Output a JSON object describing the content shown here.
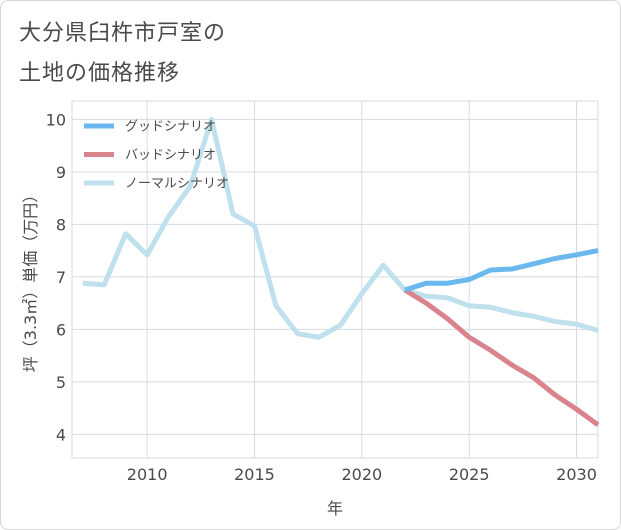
{
  "title_lines": [
    "大分県臼杵市戸室の",
    "土地の価格推移"
  ],
  "colors": {
    "good": "#6bb8ef",
    "bad": "#d9848d",
    "normal": "#bfe0ed",
    "grid": "#d5dbe3",
    "axis": "#4a4a4a"
  },
  "chart_data": {
    "type": "line",
    "title": "大分県臼杵市戸室の土地の価格推移",
    "xlabel": "年",
    "ylabel": "坪（3.3㎡）単価（万円）",
    "xlim": [
      2006.5,
      2031
    ],
    "ylim": [
      3.55,
      10.35
    ],
    "xticks": [
      2010,
      2015,
      2020,
      2025,
      2030
    ],
    "yticks": [
      4,
      5,
      6,
      7,
      8,
      9,
      10
    ],
    "legend_position": "top-left",
    "series": [
      {
        "name": "グッドシナリオ",
        "key": "good",
        "x": [
          2022,
          2023,
          2024,
          2025,
          2026,
          2027,
          2028,
          2029,
          2030,
          2031
        ],
        "values": [
          6.75,
          6.88,
          6.88,
          6.95,
          7.13,
          7.15,
          7.25,
          7.35,
          7.42,
          7.5
        ]
      },
      {
        "name": "バッドシナリオ",
        "key": "bad",
        "x": [
          2022,
          2023,
          2024,
          2025,
          2026,
          2027,
          2028,
          2029,
          2030,
          2031
        ],
        "values": [
          6.75,
          6.5,
          6.2,
          5.85,
          5.6,
          5.32,
          5.08,
          4.75,
          4.48,
          4.18
        ]
      },
      {
        "name": "ノーマルシナリオ",
        "key": "normal",
        "x": [
          2007,
          2008,
          2009,
          2010,
          2011,
          2012,
          2013,
          2014,
          2015,
          2016,
          2017,
          2018,
          2019,
          2020,
          2021,
          2022,
          2023,
          2024,
          2025,
          2026,
          2027,
          2028,
          2029,
          2030,
          2031
        ],
        "values": [
          6.88,
          6.85,
          7.82,
          7.42,
          8.15,
          8.72,
          10.0,
          8.2,
          7.97,
          6.45,
          5.92,
          5.85,
          6.08,
          6.68,
          7.22,
          6.75,
          6.63,
          6.6,
          6.45,
          6.42,
          6.32,
          6.25,
          6.15,
          6.1,
          5.98
        ]
      }
    ]
  }
}
